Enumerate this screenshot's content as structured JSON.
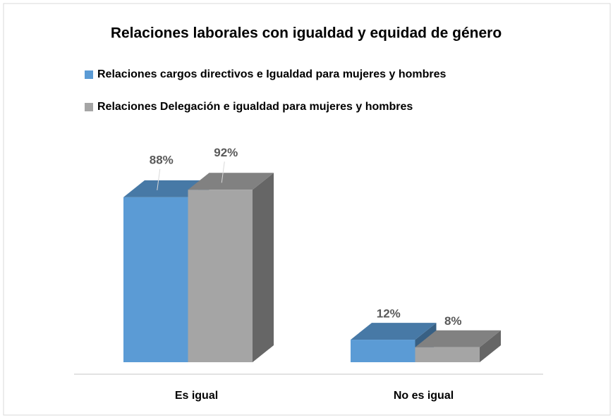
{
  "chart_data": {
    "type": "bar3d",
    "title": "Relaciones laborales con igualdad y equidad de género",
    "categories": [
      "Es igual",
      "No es igual"
    ],
    "series": [
      {
        "name": "Relaciones cargos directivos e Igualdad para mujeres y hombres",
        "color": "#5b9bd5",
        "values": [
          88,
          12
        ],
        "value_labels": [
          "88%",
          "12%"
        ]
      },
      {
        "name": "Relaciones Delegación e igualdad para mujeres y hombres",
        "color": "#a5a5a5",
        "values": [
          92,
          8
        ],
        "value_labels": [
          "92%",
          "8%"
        ]
      }
    ],
    "legend": "top"
  }
}
